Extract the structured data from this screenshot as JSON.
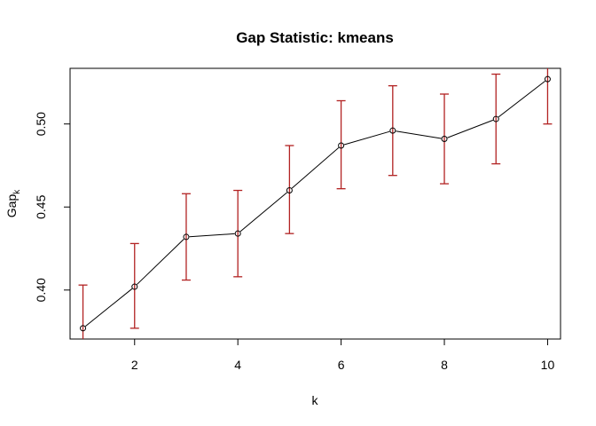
{
  "chart_data": {
    "type": "line",
    "title": "Gap Statistic: kmeans",
    "xlabel": "k",
    "ylabel_main": "Gap",
    "ylabel_sub": "k",
    "xlim": [
      0.75,
      10.25
    ],
    "ylim": [
      0.3705,
      0.5335
    ],
    "x_ticks": [
      2,
      4,
      6,
      8,
      10
    ],
    "y_ticks": [
      0.4,
      0.45,
      0.5
    ],
    "y_tick_labels": [
      "0.40",
      "0.45",
      "0.50"
    ],
    "error_bar_color": "#b22222",
    "series": [
      {
        "x": [
          1,
          2,
          3,
          4,
          5,
          6,
          7,
          8,
          9,
          10
        ],
        "gap": [
          0.377,
          0.402,
          0.432,
          0.434,
          0.46,
          0.487,
          0.496,
          0.491,
          0.503,
          0.527
        ],
        "lower": [
          0.351,
          0.377,
          0.406,
          0.408,
          0.434,
          0.461,
          0.469,
          0.464,
          0.476,
          0.5
        ],
        "upper": [
          0.403,
          0.428,
          0.458,
          0.46,
          0.487,
          0.514,
          0.523,
          0.518,
          0.53,
          0.554
        ]
      }
    ],
    "grid": false,
    "legend": "none"
  }
}
